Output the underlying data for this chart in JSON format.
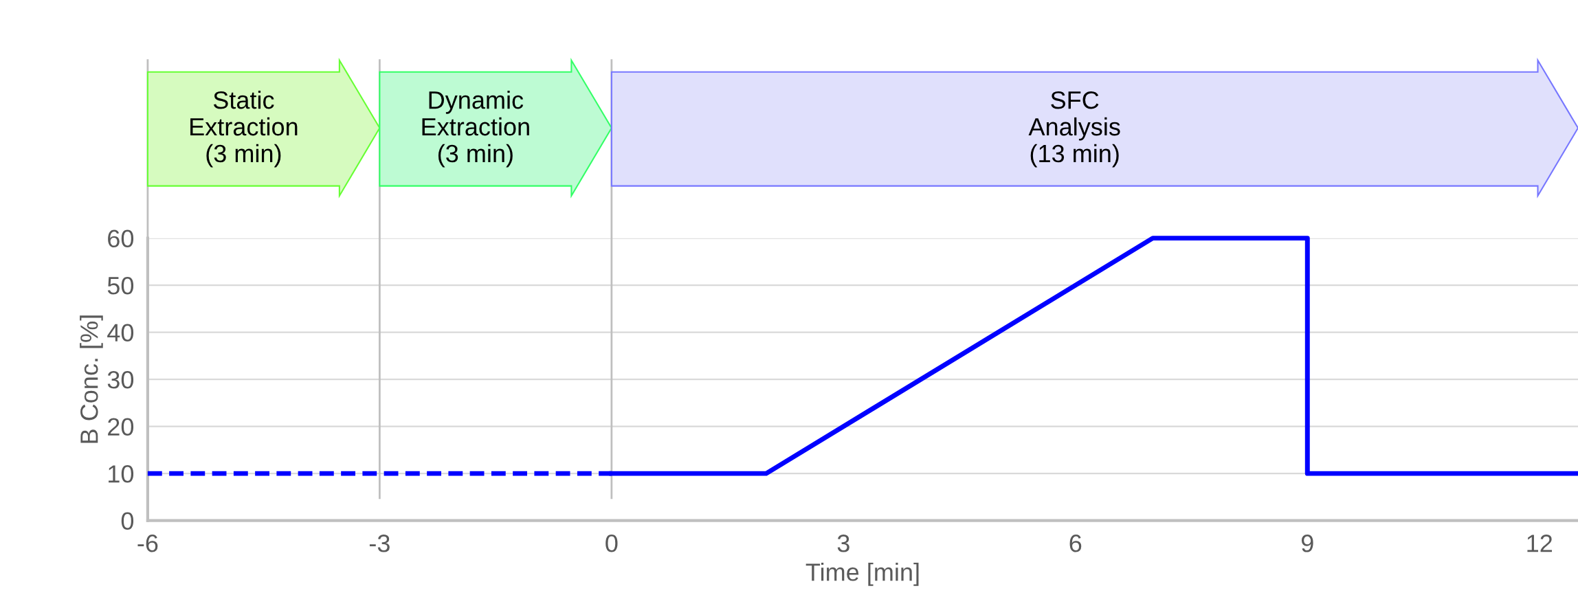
{
  "chart_data": {
    "type": "line",
    "xlabel": "Time [min]",
    "ylabel": "B Conc. [%]",
    "xlim": [
      -6,
      12.5
    ],
    "xticks": [
      -6,
      -3,
      0,
      3,
      6,
      9,
      12
    ],
    "ylim": [
      0,
      60
    ],
    "yticks": [
      0,
      10,
      20,
      30,
      40,
      50,
      60
    ],
    "grid": "y",
    "series": [
      {
        "color": "#0000ff",
        "line_style": "dashed",
        "x": [
          -6,
          0
        ],
        "values": [
          10,
          10
        ]
      },
      {
        "color": "#0000ff",
        "line_style": "solid",
        "x": [
          0,
          2,
          7,
          9,
          9,
          12.5
        ],
        "values": [
          10,
          10,
          60,
          60,
          10,
          10
        ]
      }
    ],
    "ref_lines": [
      {
        "axis": "x",
        "value": -3,
        "color": "#bfbfbf"
      },
      {
        "axis": "x",
        "value": 0,
        "color": "#bfbfbf"
      }
    ],
    "annotations": [
      "Static\nExtraction\n(3 min)",
      "Dynamic\nExtraction\n(3 min)",
      "SFC\nAnalysis\n(13 min)"
    ]
  }
}
